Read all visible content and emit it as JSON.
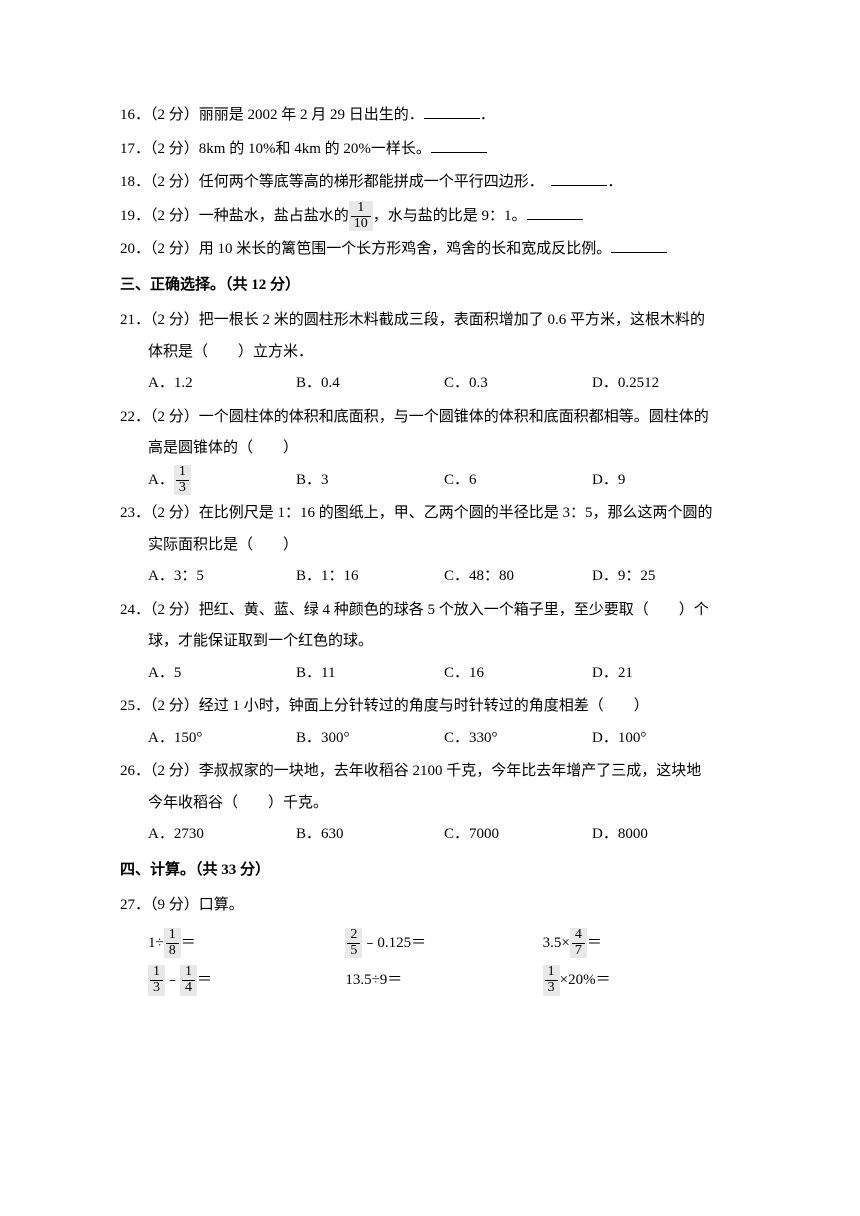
{
  "q16": {
    "num": "16．",
    "pts": "（2 分）",
    "text": "丽丽是 2002 年 2 月 29 日出生的．",
    "tail": "．"
  },
  "q17": {
    "num": "17．",
    "pts": "（2 分）",
    "text": "8km 的 10%和 4km 的 20%一样长。"
  },
  "q18": {
    "num": "18．",
    "pts": "（2 分）",
    "text": "任何两个等底等高的梯形都能拼成一个平行四边形．",
    "tail": "．"
  },
  "q19": {
    "num": "19．",
    "pts": "（2 分）",
    "pre": "一种盐水，盐占盐水的",
    "frac_n": "1",
    "frac_d": "10",
    "post": "，水与盐的比是 9：1。"
  },
  "q20": {
    "num": "20．",
    "pts": "（2 分）",
    "text": "用 10 米长的篱笆围一个长方形鸡舍，鸡舍的长和宽成反比例。"
  },
  "sec3": "三、正确选择。（共 12 分）",
  "q21": {
    "num": "21．",
    "pts": "（2 分）",
    "l1": "把一根长 2 米的圆柱形木料截成三段，表面积增加了 0.6 平方米，这根木料的",
    "l2": "体积是（　　）立方米．",
    "a": "A．1.2",
    "b": "B．0.4",
    "c": "C．0.3",
    "d": "D．0.2512"
  },
  "q22": {
    "num": "22．",
    "pts": "（2 分）",
    "l1": "一个圆柱体的体积和底面积，与一个圆锥体的体积和底面积都相等。圆柱体的",
    "l2": "高是圆锥体的（　　）",
    "a": "A．",
    "af_n": "1",
    "af_d": "3",
    "b": "B．3",
    "c": "C．6",
    "d": "D．9"
  },
  "q23": {
    "num": "23．",
    "pts": "（2 分）",
    "l1": "在比例尺是 1：16 的图纸上，甲、乙两个圆的半径比是 3：5，那么这两个圆的",
    "l2": "实际面积比是（　　）",
    "a": "A．3：5",
    "b": "B．1：16",
    "c": "C．48：80",
    "d": "D．9：25"
  },
  "q24": {
    "num": "24．",
    "pts": "（2 分）",
    "l1": "把红、黄、蓝、绿 4 种颜色的球各 5 个放入一个箱子里，至少要取（　　）个",
    "l2": "球，才能保证取到一个红色的球。",
    "a": "A．5",
    "b": "B．11",
    "c": "C．16",
    "d": "D．21"
  },
  "q25": {
    "num": "25．",
    "pts": "（2 分）",
    "l1": "经过 1 小时，钟面上分针转过的角度与时针转过的角度相差（　　）",
    "a": "A．150°",
    "b": "B．300°",
    "c": "C．330°",
    "d": "D．100°"
  },
  "q26": {
    "num": "26．",
    "pts": "（2 分）",
    "l1": "李叔叔家的一块地，去年收稻谷 2100 千克，今年比去年增产了三成，这块地",
    "l2": "今年收稻谷（　　）千克。",
    "a": "A．2730",
    "b": "B．630",
    "c": "C．7000",
    "d": "D．8000"
  },
  "sec4": "四、计算。（共 33 分）",
  "q27": {
    "num": "27．",
    "pts": "（9 分）",
    "text": "口算。"
  },
  "calc": {
    "r1c1_pre": "1÷",
    "r1c1_fn": "1",
    "r1c1_fd": "8",
    "r1c1_post": "＝",
    "r1c2_fn": "2",
    "r1c2_fd": "5",
    "r1c2_post": "﹣0.125＝",
    "r1c3_pre": "3.5×",
    "r1c3_fn": "4",
    "r1c3_fd": "7",
    "r1c3_post": "＝",
    "r2c1_f1n": "1",
    "r2c1_f1d": "3",
    "r2c1_mid": "﹣",
    "r2c1_f2n": "1",
    "r2c1_f2d": "4",
    "r2c1_post": "＝",
    "r2c2": "13.5÷9＝",
    "r2c3_fn": "1",
    "r2c3_fd": "3",
    "r2c3_post": "×20%＝"
  }
}
